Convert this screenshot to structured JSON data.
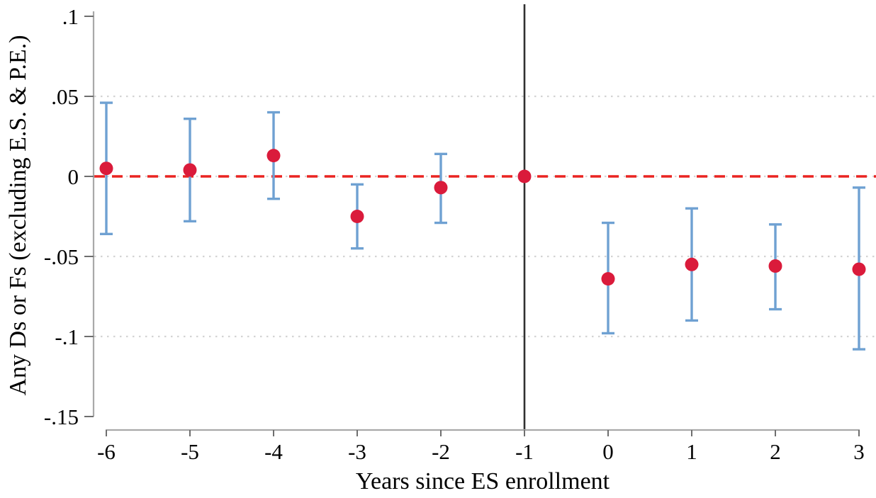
{
  "chart_data": {
    "type": "scatter",
    "subtype": "event-study-errorbar",
    "title": "",
    "xlabel": "Years since ES enrollment",
    "ylabel": "Any Ds or Fs (excluding E.S. & P.E.)",
    "x_ticks": [
      -6,
      -5,
      -4,
      -3,
      -2,
      -1,
      0,
      1,
      2,
      3
    ],
    "x_tick_labels": [
      "-6",
      "-5",
      "-4",
      "-3",
      "-2",
      "-1",
      "0",
      "1",
      "2",
      "3"
    ],
    "y_ticks": [
      0.1,
      0.05,
      0,
      -0.05,
      -0.1,
      -0.15
    ],
    "y_tick_labels": [
      ".1",
      ".05",
      "0",
      "-.05",
      "-.1",
      "-.15"
    ],
    "xlim": [
      -6.2,
      3.2
    ],
    "ylim": [
      -0.155,
      0.105
    ],
    "grid": "on",
    "gridlines_y": [
      0.05,
      0,
      -0.05,
      -0.1
    ],
    "legend_position": "none",
    "reference_lines": {
      "horizontal_dashed_y": 0,
      "vertical_solid_x": -1
    },
    "series": [
      {
        "name": "coefficient-estimates-with-95ci",
        "points": [
          {
            "x": -6,
            "y": 0.005,
            "ci_low": -0.036,
            "ci_high": 0.046
          },
          {
            "x": -5,
            "y": 0.004,
            "ci_low": -0.028,
            "ci_high": 0.036
          },
          {
            "x": -4,
            "y": 0.013,
            "ci_low": -0.014,
            "ci_high": 0.04
          },
          {
            "x": -3,
            "y": -0.025,
            "ci_low": -0.045,
            "ci_high": -0.005
          },
          {
            "x": -2,
            "y": -0.007,
            "ci_low": -0.029,
            "ci_high": 0.014
          },
          {
            "x": -1,
            "y": 0.0,
            "ci_low": null,
            "ci_high": null
          },
          {
            "x": 0,
            "y": -0.064,
            "ci_low": -0.098,
            "ci_high": -0.029
          },
          {
            "x": 1,
            "y": -0.055,
            "ci_low": -0.09,
            "ci_high": -0.02
          },
          {
            "x": 2,
            "y": -0.056,
            "ci_low": -0.083,
            "ci_high": -0.03
          },
          {
            "x": 3,
            "y": -0.058,
            "ci_low": -0.108,
            "ci_high": -0.007
          }
        ]
      }
    ],
    "colors": {
      "point": "#da1b3b",
      "ci_bar": "#6fa1d2",
      "zero_line": "#ea2420",
      "event_line": "#303030",
      "axis_line": "#a9a9a9",
      "tick_mark": "#6e6e6e",
      "gridline": "#d4d4d4",
      "text": "#000000",
      "background": "#ffffff"
    }
  }
}
